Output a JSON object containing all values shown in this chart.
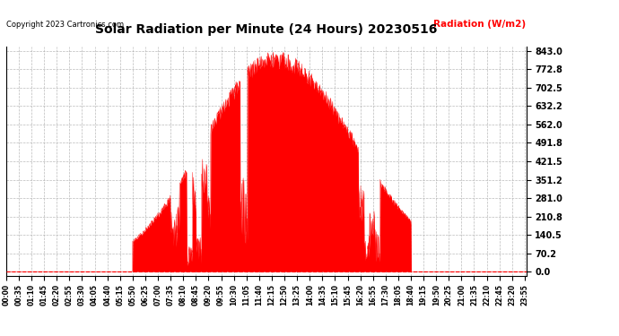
{
  "title": "Solar Radiation per Minute (24 Hours) 20230516",
  "ylabel": "Radiation (W/m2)",
  "copyright_text": "Copyright 2023 Cartronics.com",
  "ylabel_color": "#ff0000",
  "copyright_color": "#000000",
  "fill_color": "#ff0000",
  "line_color": "#ff0000",
  "background_color": "#ffffff",
  "grid_color": "#aaaaaa",
  "zero_line_color": "#ff0000",
  "yticks": [
    0.0,
    70.2,
    140.5,
    210.8,
    281.0,
    351.2,
    421.5,
    491.8,
    562.0,
    632.2,
    702.5,
    772.8,
    843.0
  ],
  "ymax": 843.0,
  "ymin": 0.0,
  "total_minutes": 1440,
  "tick_interval": 35
}
